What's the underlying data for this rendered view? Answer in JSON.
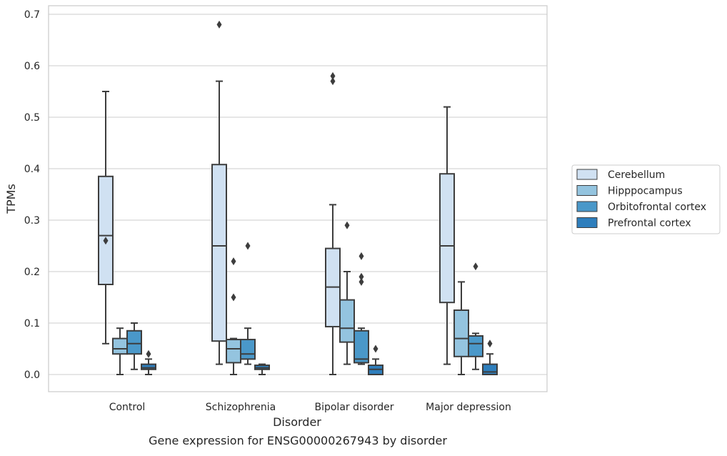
{
  "chart_data": {
    "type": "box",
    "caption": "Gene expression for ENSG00000267943 by disorder",
    "xlabel": "Disorder",
    "ylabel": "TPMs",
    "ylim": [
      -0.033,
      0.72
    ],
    "yticks": [
      0.0,
      0.1,
      0.2,
      0.3,
      0.4,
      0.5,
      0.6,
      0.7
    ],
    "ytick_labels": [
      "0.0",
      "0.1",
      "0.2",
      "0.3",
      "0.4",
      "0.5",
      "0.6",
      "0.7"
    ],
    "grid": "horizontal",
    "legend_placement": "right, outside plot",
    "categories": [
      "Control",
      "Schizophrenia",
      "Bipolar disorder",
      "Major depression"
    ],
    "series": [
      {
        "name": "Cerebellum",
        "color": "#d0e1f2",
        "boxes": [
          {
            "whisker_low": 0.06,
            "q1": 0.175,
            "median": 0.27,
            "q3": 0.385,
            "whisker_high": 0.55,
            "outliers": [
              0.26
            ]
          },
          {
            "whisker_low": 0.02,
            "q1": 0.065,
            "median": 0.25,
            "q3": 0.408,
            "whisker_high": 0.57,
            "outliers": [
              0.68
            ]
          },
          {
            "whisker_low": 0.0,
            "q1": 0.093,
            "median": 0.17,
            "q3": 0.245,
            "whisker_high": 0.33,
            "outliers": [
              0.57,
              0.58
            ]
          },
          {
            "whisker_low": 0.02,
            "q1": 0.14,
            "median": 0.25,
            "q3": 0.39,
            "whisker_high": 0.52,
            "outliers": []
          }
        ]
      },
      {
        "name": "Hipppocampus",
        "color": "#94c4df",
        "boxes": [
          {
            "whisker_low": 0.0,
            "q1": 0.04,
            "median": 0.05,
            "q3": 0.07,
            "whisker_high": 0.09,
            "outliers": []
          },
          {
            "whisker_low": 0.0,
            "q1": 0.023,
            "median": 0.05,
            "q3": 0.068,
            "whisker_high": 0.07,
            "outliers": [
              0.15,
              0.22
            ]
          },
          {
            "whisker_low": 0.02,
            "q1": 0.063,
            "median": 0.09,
            "q3": 0.145,
            "whisker_high": 0.2,
            "outliers": [
              0.29
            ]
          },
          {
            "whisker_low": 0.0,
            "q1": 0.035,
            "median": 0.07,
            "q3": 0.125,
            "whisker_high": 0.18,
            "outliers": []
          }
        ]
      },
      {
        "name": "Orbitofrontal cortex",
        "color": "#4a98c9",
        "boxes": [
          {
            "whisker_low": 0.01,
            "q1": 0.04,
            "median": 0.06,
            "q3": 0.085,
            "whisker_high": 0.1,
            "outliers": []
          },
          {
            "whisker_low": 0.02,
            "q1": 0.03,
            "median": 0.04,
            "q3": 0.068,
            "whisker_high": 0.09,
            "outliers": [
              0.25
            ]
          },
          {
            "whisker_low": 0.02,
            "q1": 0.023,
            "median": 0.03,
            "q3": 0.085,
            "whisker_high": 0.09,
            "outliers": [
              0.18,
              0.19,
              0.23
            ]
          },
          {
            "whisker_low": 0.01,
            "q1": 0.035,
            "median": 0.06,
            "q3": 0.075,
            "whisker_high": 0.08,
            "outliers": [
              0.21
            ]
          }
        ]
      },
      {
        "name": "Prefrontal cortex",
        "color": "#2e7ebc",
        "boxes": [
          {
            "whisker_low": 0.0,
            "q1": 0.01,
            "median": 0.013,
            "q3": 0.02,
            "whisker_high": 0.03,
            "outliers": [
              0.04
            ]
          },
          {
            "whisker_low": 0.0,
            "q1": 0.01,
            "median": 0.013,
            "q3": 0.018,
            "whisker_high": 0.02,
            "outliers": []
          },
          {
            "whisker_low": 0.0,
            "q1": 0.0,
            "median": 0.01,
            "q3": 0.018,
            "whisker_high": 0.03,
            "outliers": [
              0.05
            ]
          },
          {
            "whisker_low": 0.0,
            "q1": 0.0,
            "median": 0.005,
            "q3": 0.02,
            "whisker_high": 0.04,
            "outliers": [
              0.06
            ]
          }
        ]
      }
    ]
  }
}
